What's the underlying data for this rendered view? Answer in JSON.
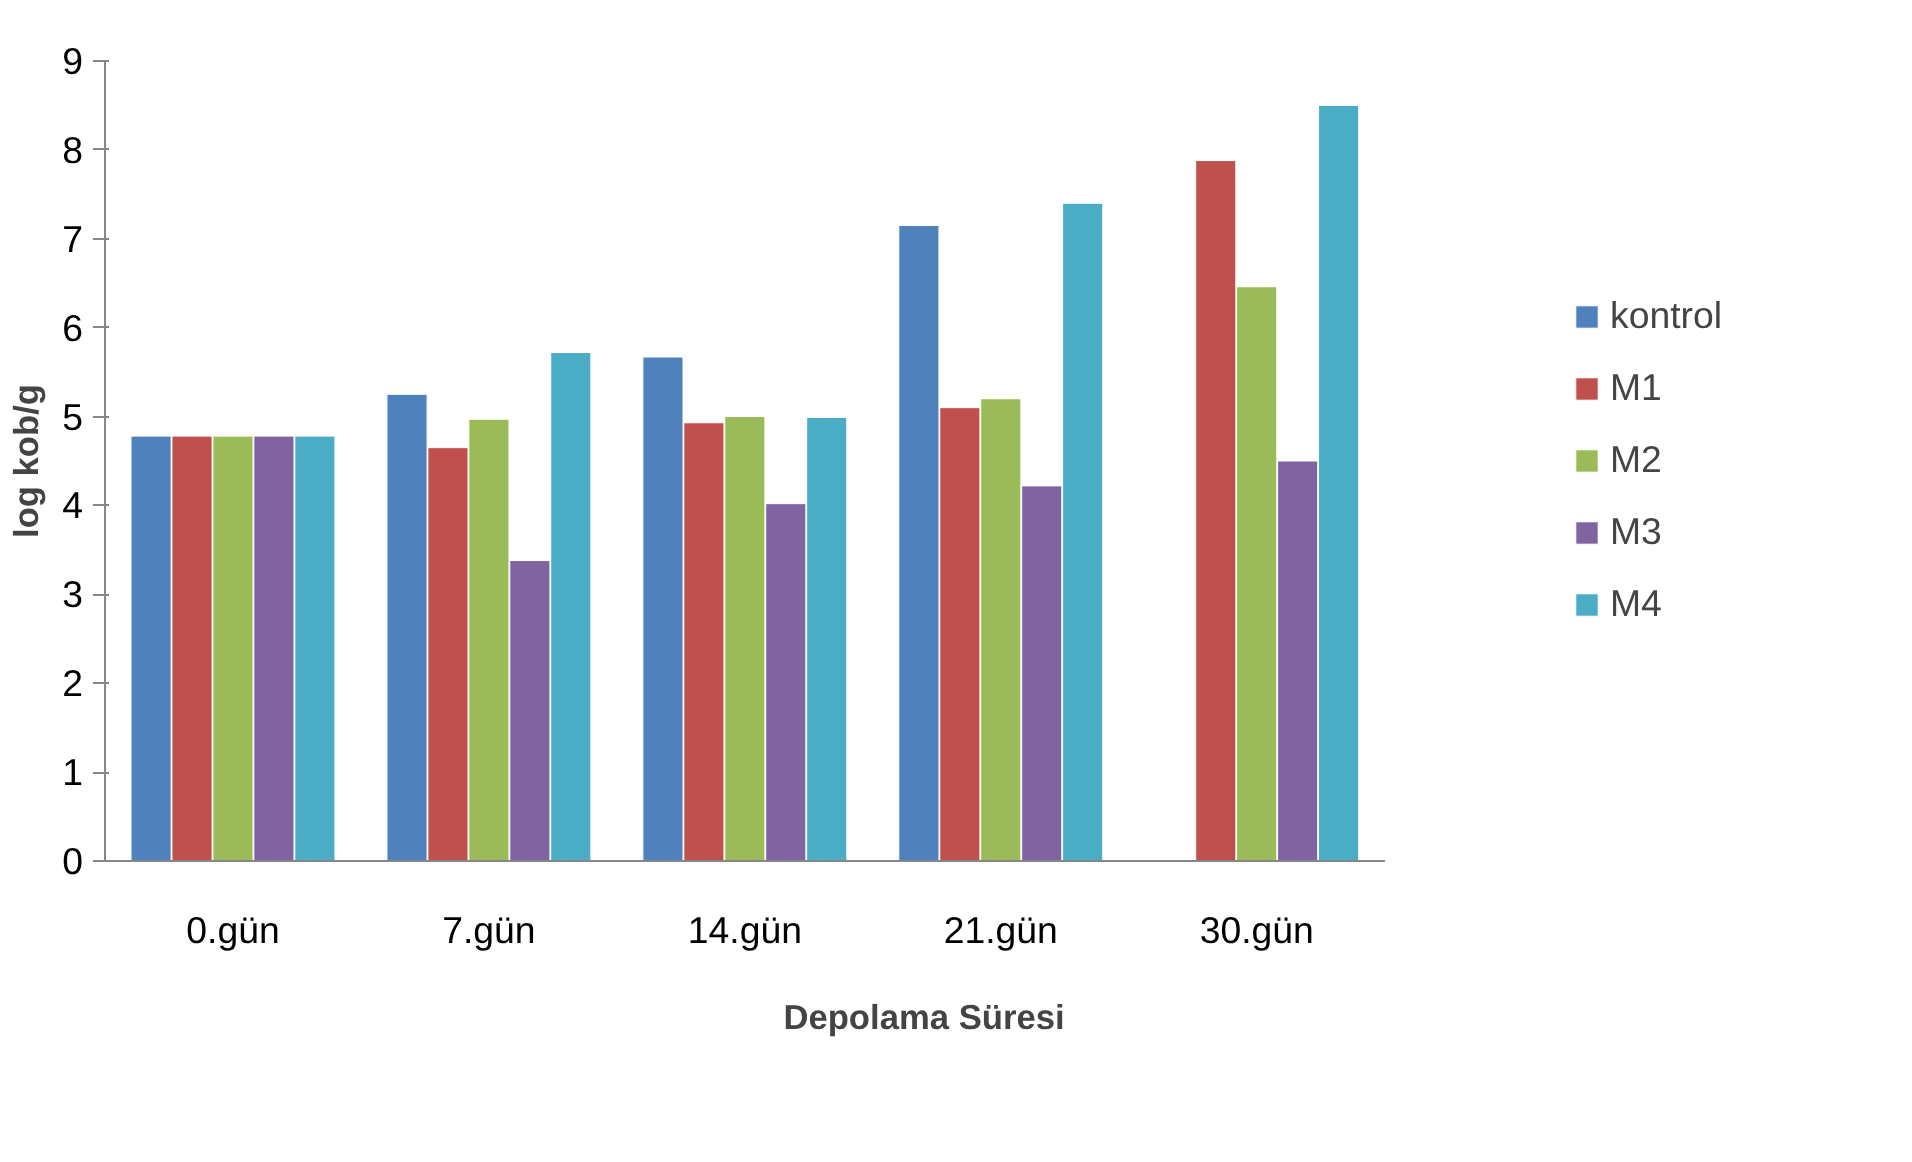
{
  "chart_data": {
    "type": "bar",
    "xlabel": "Depolama Süresi",
    "ylabel": "log kob/g",
    "categories": [
      "0.gün",
      "7.gün",
      "14.gün",
      "21.gün",
      "30.gün"
    ],
    "series": [
      {
        "name": "kontrol",
        "color": "#4f81bd",
        "values": [
          4.78,
          5.25,
          5.67,
          7.15,
          null
        ]
      },
      {
        "name": "M1",
        "color": "#c0504d",
        "values": [
          4.78,
          4.65,
          4.93,
          5.1,
          7.88
        ]
      },
      {
        "name": "M2",
        "color": "#9bbb59",
        "values": [
          4.78,
          4.97,
          5.0,
          5.2,
          6.46
        ]
      },
      {
        "name": "M3",
        "color": "#8064a2",
        "values": [
          4.78,
          3.38,
          4.02,
          4.22,
          4.5
        ]
      },
      {
        "name": "M4",
        "color": "#4bacc6",
        "values": [
          4.78,
          5.72,
          4.99,
          7.4,
          8.5
        ]
      }
    ],
    "ylim": [
      0,
      9
    ],
    "yticks": [
      0,
      1,
      2,
      3,
      4,
      5,
      6,
      7,
      8,
      9
    ],
    "grid": false,
    "legend": "right"
  }
}
